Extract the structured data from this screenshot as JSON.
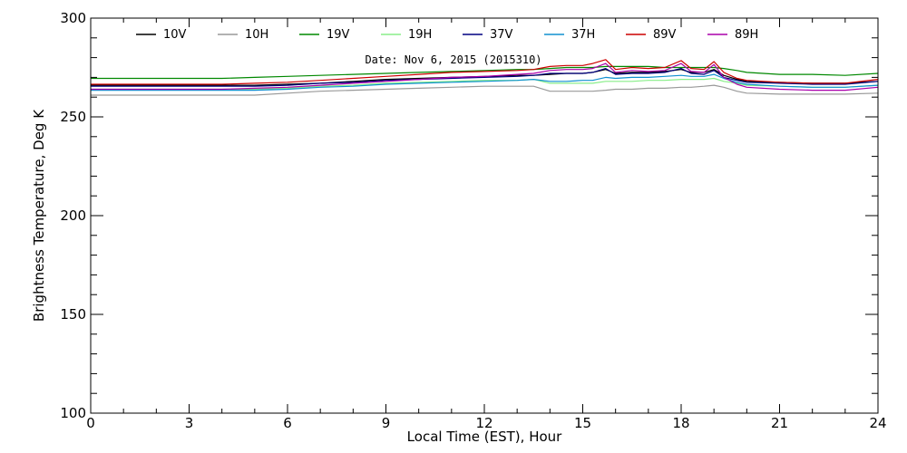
{
  "chart_data": {
    "type": "line",
    "xlabel": "Local Time (EST), Hour",
    "ylabel": "Brightness Temperature, Deg K",
    "annotation": "Date: Nov  6, 2015 (2015310)",
    "xlim": [
      0,
      24
    ],
    "ylim": [
      100,
      300
    ],
    "x_ticks": [
      0,
      3,
      6,
      9,
      12,
      15,
      18,
      21,
      24
    ],
    "x_tick_labels": [
      "0",
      "3",
      "6",
      "9",
      "12",
      "15",
      "18",
      "21",
      "24"
    ],
    "y_ticks": [
      100,
      150,
      200,
      250,
      300
    ],
    "y_tick_labels": [
      "100",
      "150",
      "200",
      "250",
      "300"
    ],
    "grid": false,
    "legend_position": "top",
    "x": [
      0,
      1,
      2,
      3,
      4,
      5,
      6,
      7,
      8,
      9,
      10,
      11,
      12,
      13,
      13.5,
      14,
      14.5,
      15,
      15.3,
      15.7,
      16,
      16.5,
      17,
      17.5,
      18,
      18.3,
      18.7,
      19,
      19.3,
      19.7,
      20,
      21,
      22,
      23,
      24
    ],
    "series": [
      {
        "name": "10V",
        "color": "#000000",
        "values": [
          266,
          266,
          266,
          266,
          266,
          266,
          266.5,
          267,
          268,
          269,
          269.5,
          270,
          270.5,
          271,
          271,
          271.5,
          272,
          272,
          272.5,
          274,
          272,
          272.5,
          272.5,
          273,
          274,
          272.5,
          272.5,
          274,
          271,
          269,
          268,
          267.5,
          267,
          267,
          268
        ]
      },
      {
        "name": "10H",
        "color": "#999999",
        "values": [
          261,
          261,
          261,
          261,
          261,
          261,
          262,
          263,
          263.5,
          264,
          264.5,
          265,
          265.5,
          265.5,
          265.5,
          263,
          263,
          263,
          263,
          263.5,
          264,
          264,
          264.5,
          264.5,
          265,
          265,
          265.5,
          266,
          265,
          263,
          262,
          261.5,
          261.5,
          261.5,
          262
        ]
      },
      {
        "name": "19V",
        "color": "#008800",
        "values": [
          269.5,
          269.5,
          269.5,
          269.5,
          269.5,
          270,
          270.5,
          271,
          271.5,
          272,
          272.5,
          273,
          273.5,
          274,
          274,
          274.5,
          275,
          275,
          275,
          275.5,
          275.5,
          275.5,
          275.5,
          275,
          275,
          275,
          275,
          275,
          274.5,
          273.5,
          272.5,
          271.5,
          271.5,
          271,
          272
        ]
      },
      {
        "name": "19H",
        "color": "#88ee88",
        "values": [
          264,
          264,
          264,
          264,
          264,
          264,
          264.5,
          265.5,
          266,
          267,
          267.5,
          268,
          268.5,
          268.5,
          269,
          267,
          267,
          267,
          267,
          268,
          268,
          268,
          268.5,
          268.5,
          269,
          269,
          269,
          269.5,
          268,
          267,
          266,
          265.5,
          265,
          265,
          266
        ]
      },
      {
        "name": "37V",
        "color": "#000080",
        "values": [
          265.5,
          265.5,
          265.5,
          265.5,
          265.5,
          265.5,
          266,
          267,
          267.5,
          268.5,
          269,
          269.5,
          270,
          270.5,
          271,
          272,
          272,
          272,
          272.5,
          274.5,
          271.5,
          272,
          272,
          272.5,
          274.5,
          272,
          271.5,
          273.5,
          270,
          268.5,
          267.5,
          267,
          266.5,
          266.5,
          268
        ]
      },
      {
        "name": "37H",
        "color": "#1090d0",
        "values": [
          263.5,
          263.5,
          263.5,
          263.5,
          263.5,
          263.5,
          264,
          265,
          265.5,
          266.5,
          267,
          267.5,
          268,
          268.5,
          269,
          268,
          268,
          268.5,
          268.5,
          270,
          269.5,
          270,
          270,
          270.5,
          271,
          270.5,
          270.5,
          271.5,
          269.5,
          267.5,
          266.5,
          265.5,
          265,
          265,
          266
        ]
      },
      {
        "name": "89V",
        "color": "#cc0000",
        "values": [
          266.5,
          266.5,
          266.5,
          266.5,
          266.5,
          267,
          267.5,
          268.5,
          269.5,
          270.5,
          271.5,
          272.5,
          273,
          273.5,
          274,
          275.5,
          276,
          276,
          277,
          279,
          274,
          275,
          274.5,
          275,
          278.5,
          274.5,
          274,
          278,
          272.5,
          269.5,
          268.5,
          267.5,
          267,
          267,
          269
        ]
      },
      {
        "name": "89H",
        "color": "#aa00aa",
        "values": [
          264,
          264,
          264,
          264,
          264,
          264.5,
          265,
          266,
          267,
          268,
          269,
          270,
          270.5,
          271.5,
          272,
          273.5,
          274,
          274,
          274.5,
          277,
          272.5,
          273.5,
          273,
          273.5,
          277,
          273,
          272.5,
          276.5,
          270,
          266.5,
          265,
          264,
          263.5,
          263.5,
          265
        ]
      }
    ]
  }
}
